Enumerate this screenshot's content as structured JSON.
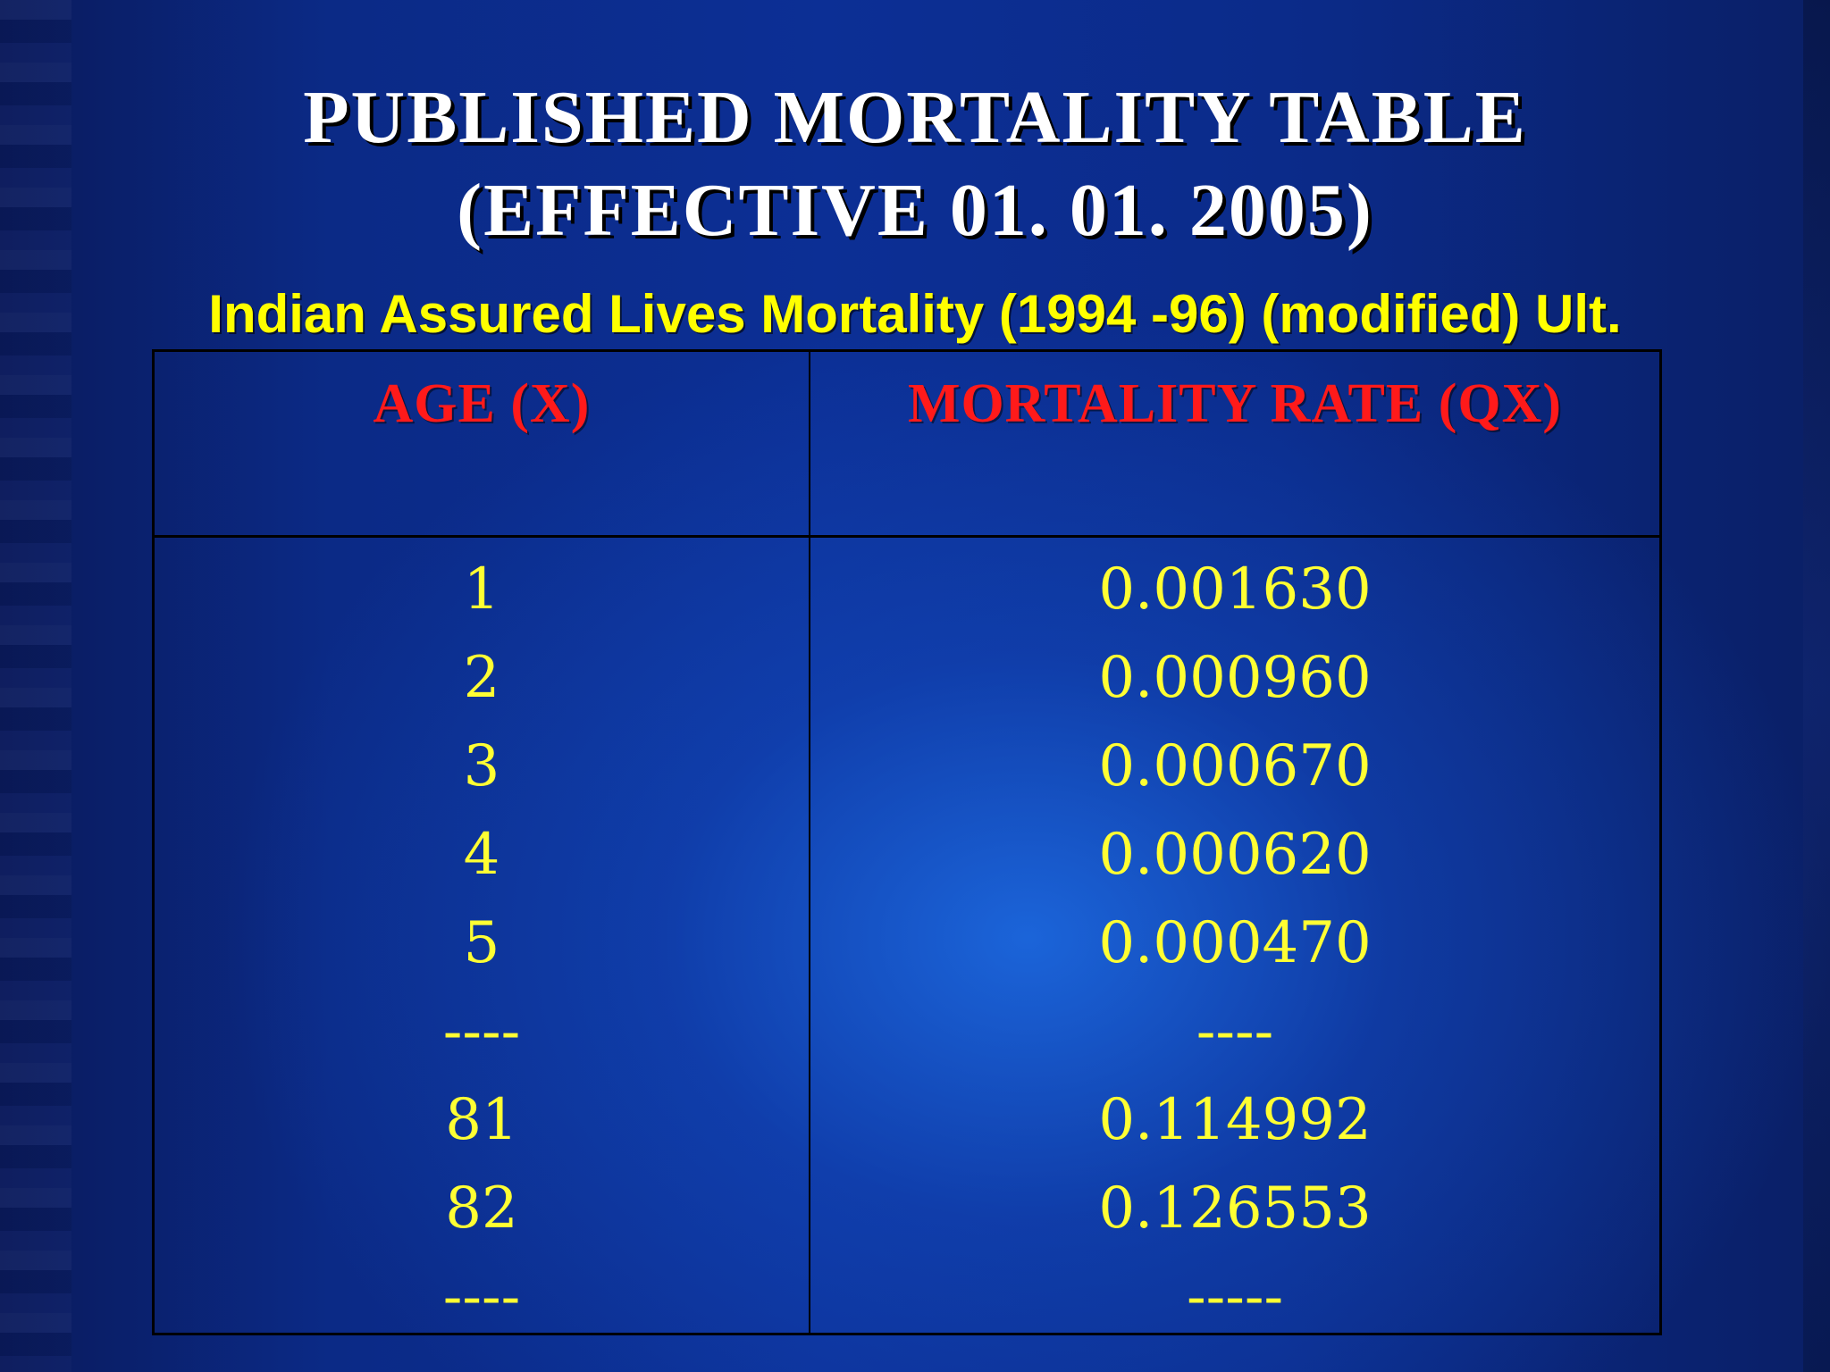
{
  "slide": {
    "title_line1": "PUBLISHED MORTALITY TABLE",
    "title_line2": "(EFFECTIVE 01. 01. 2005)",
    "subtitle": "Indian Assured Lives Mortality (1994 -96) (modified) Ult."
  },
  "table": {
    "headers": {
      "age": "AGE (X)",
      "rate": "MORTALITY RATE (QX)"
    },
    "rows": [
      {
        "age": "1",
        "rate": "0.001630"
      },
      {
        "age": "2",
        "rate": "0.000960"
      },
      {
        "age": "3",
        "rate": "0.000670"
      },
      {
        "age": "4",
        "rate": "0.000620"
      },
      {
        "age": "5",
        "rate": "0.000470"
      },
      {
        "age": "----",
        "rate": "----"
      },
      {
        "age": "81",
        "rate": "0.114992"
      },
      {
        "age": "82",
        "rate": "0.126553"
      },
      {
        "age": "----",
        "rate": "-----"
      }
    ]
  },
  "colors": {
    "title": "#ffffff",
    "subtitle": "#ffff00",
    "header": "#ff1a1a",
    "cells": "#ffff33"
  }
}
